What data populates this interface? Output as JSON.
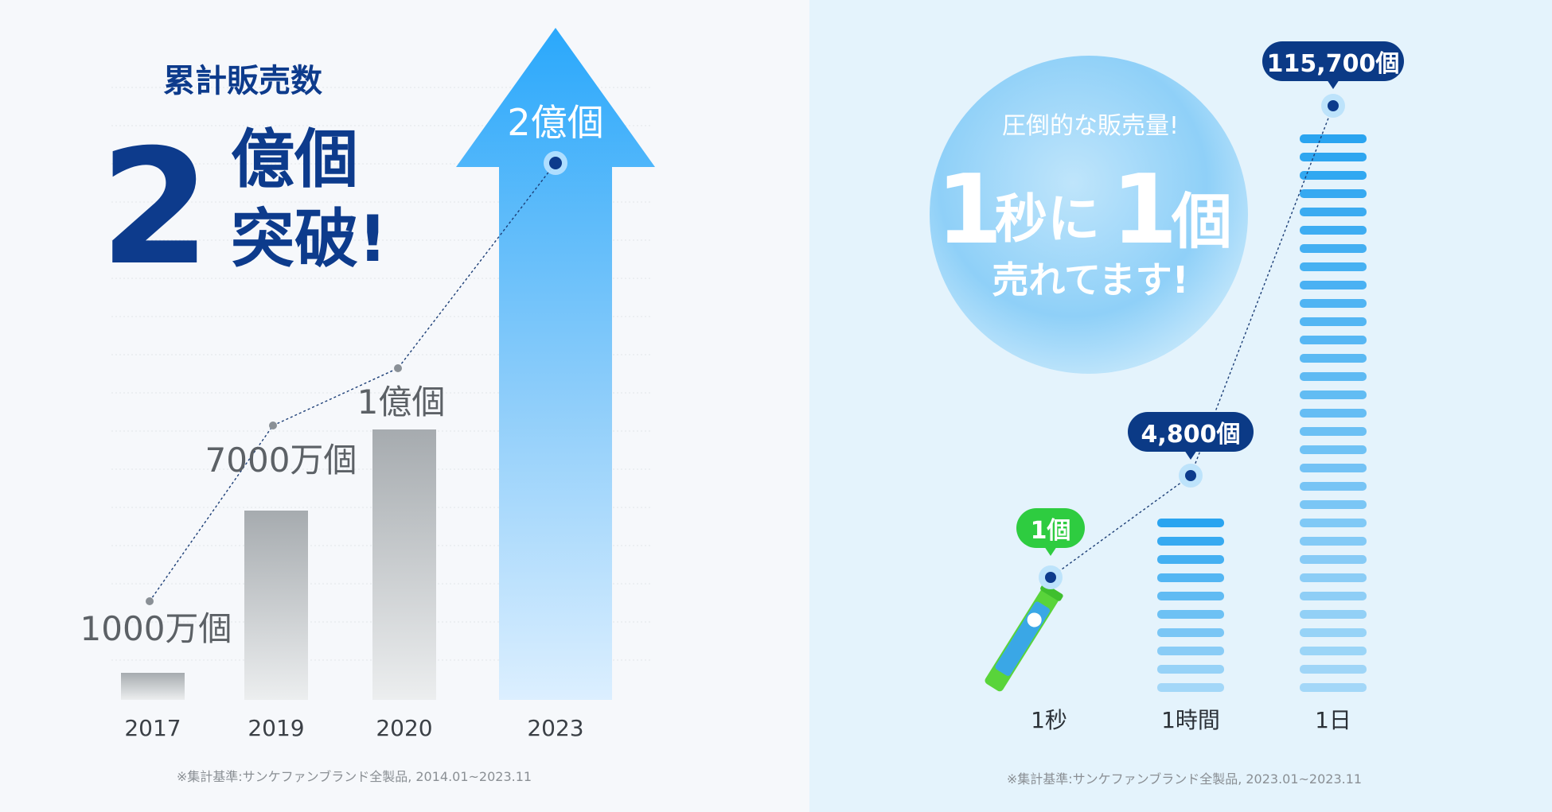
{
  "left": {
    "subtitle": "累計販売数",
    "big_number": "2",
    "headline_line1": "億個",
    "headline_line2": "突破!",
    "footnote": "※集計基準:サンケファンブランド全製品, 2014.01~2023.11"
  },
  "right": {
    "bubble_top": "圧倒的な販売量!",
    "bubble_n1": "1",
    "bubble_w1": "秒に",
    "bubble_n2": "1",
    "bubble_w2": "個",
    "bubble_bottom": "売れてます!",
    "footnote": "※集計基準:サンケファンブランド全製品, 2023.01~2023.11",
    "product_icon": "stick-pack-product-image"
  },
  "chart_data": [
    {
      "type": "bar",
      "title": "累計販売数",
      "categories": [
        "2017",
        "2019",
        "2020",
        "2023"
      ],
      "values": [
        10000000,
        70000000,
        100000000,
        200000000
      ],
      "data_labels": [
        "1000万個",
        "7000万個",
        "1億個",
        "2億個"
      ],
      "ylim": [
        0,
        200000000
      ],
      "grid": true,
      "colors": {
        "bar_gray": "#a9aeb2",
        "bar_blue": "#30a9f5",
        "navy": "#0d3b8c"
      }
    },
    {
      "type": "bar",
      "categories": [
        "1秒",
        "1時間",
        "1日"
      ],
      "values": [
        1,
        4800,
        115700
      ],
      "data_labels": [
        "1個",
        "4,800個",
        "115,700個"
      ],
      "colors": {
        "label_green": "#2ecc40",
        "label_navy": "#0b3a86",
        "stripe_blue": "#2aa4f0"
      }
    }
  ]
}
